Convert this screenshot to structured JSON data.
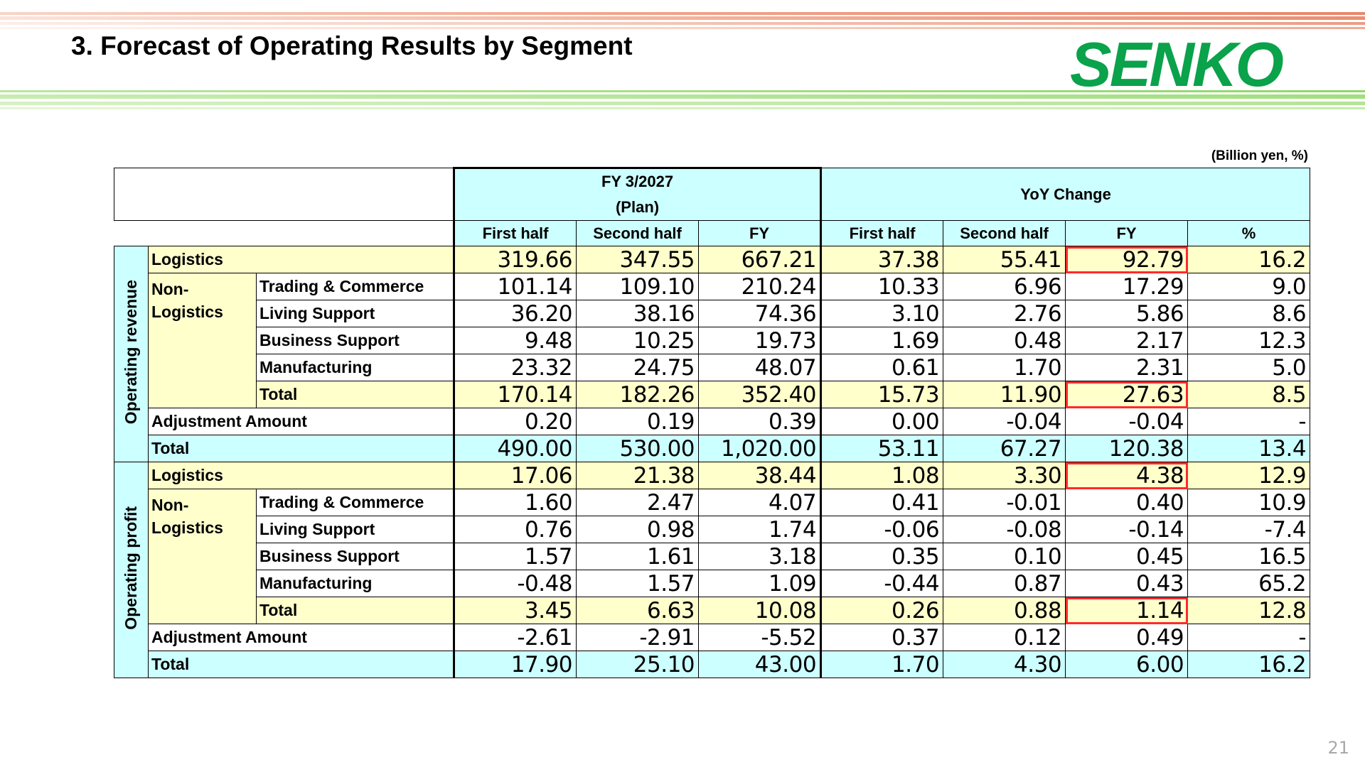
{
  "header": {
    "title": "3. Forecast of Operating Results by Segment",
    "logo": "SENKO",
    "unit_note": "(Billion yen, %)",
    "page_number": "21"
  },
  "table": {
    "plan_header_line1": "FY 3/2027",
    "plan_header_line2": "(Plan)",
    "yoy_header": "YoY Change",
    "cols": [
      "First half",
      "Second half",
      "FY",
      "First half",
      "Second half",
      "FY",
      "%"
    ],
    "revenue": {
      "section_label": "Operating revenue",
      "logistics": {
        "label": "Logistics",
        "values": [
          "319.66",
          "347.55",
          "667.21",
          "37.38",
          "55.41",
          "92.79",
          "16.2"
        ]
      },
      "non_logistics_label": "Non-Logistics",
      "trading": {
        "label": "Trading & Commerce",
        "values": [
          "101.14",
          "109.10",
          "210.24",
          "10.33",
          "6.96",
          "17.29",
          "9.0"
        ]
      },
      "living": {
        "label": "Living Support",
        "values": [
          "36.20",
          "38.16",
          "74.36",
          "3.10",
          "2.76",
          "5.86",
          "8.6"
        ]
      },
      "business": {
        "label": "Business Support",
        "values": [
          "9.48",
          "10.25",
          "19.73",
          "1.69",
          "0.48",
          "2.17",
          "12.3"
        ]
      },
      "manufacturing": {
        "label": "Manufacturing",
        "values": [
          "23.32",
          "24.75",
          "48.07",
          "0.61",
          "1.70",
          "2.31",
          "5.0"
        ]
      },
      "subtotal": {
        "label": "Total",
        "values": [
          "170.14",
          "182.26",
          "352.40",
          "15.73",
          "11.90",
          "27.63",
          "8.5"
        ]
      },
      "adjustment": {
        "label": "Adjustment Amount",
        "values": [
          "0.20",
          "0.19",
          "0.39",
          "0.00",
          "-0.04",
          "-0.04",
          "-"
        ]
      },
      "total": {
        "label": "Total",
        "values": [
          "490.00",
          "530.00",
          "1,020.00",
          "53.11",
          "67.27",
          "120.38",
          "13.4"
        ]
      }
    },
    "profit": {
      "section_label": "Operating profit",
      "logistics": {
        "label": "Logistics",
        "values": [
          "17.06",
          "21.38",
          "38.44",
          "1.08",
          "3.30",
          "4.38",
          "12.9"
        ]
      },
      "non_logistics_label": "Non-Logistics",
      "trading": {
        "label": "Trading & Commerce",
        "values": [
          "1.60",
          "2.47",
          "4.07",
          "0.41",
          "-0.01",
          "0.40",
          "10.9"
        ]
      },
      "living": {
        "label": "Living Support",
        "values": [
          "0.76",
          "0.98",
          "1.74",
          "-0.06",
          "-0.08",
          "-0.14",
          "-7.4"
        ]
      },
      "business": {
        "label": "Business Support",
        "values": [
          "1.57",
          "1.61",
          "3.18",
          "0.35",
          "0.10",
          "0.45",
          "16.5"
        ]
      },
      "manufacturing": {
        "label": "Manufacturing",
        "values": [
          "-0.48",
          "1.57",
          "1.09",
          "-0.44",
          "0.87",
          "0.43",
          "65.2"
        ]
      },
      "subtotal": {
        "label": "Total",
        "values": [
          "3.45",
          "6.63",
          "10.08",
          "0.26",
          "0.88",
          "1.14",
          "12.8"
        ]
      },
      "adjustment": {
        "label": "Adjustment Amount",
        "values": [
          "-2.61",
          "-2.91",
          "-5.52",
          "0.37",
          "0.12",
          "0.49",
          "-"
        ]
      },
      "total": {
        "label": "Total",
        "values": [
          "17.90",
          "25.10",
          "43.00",
          "1.70",
          "4.30",
          "6.00",
          "16.2"
        ]
      }
    }
  },
  "colors": {
    "header_cyan": "#ccffff",
    "highlight_yellow": "#ffffcc",
    "logo_green": "#0aa24a",
    "red_box": "#ff2a2a"
  }
}
